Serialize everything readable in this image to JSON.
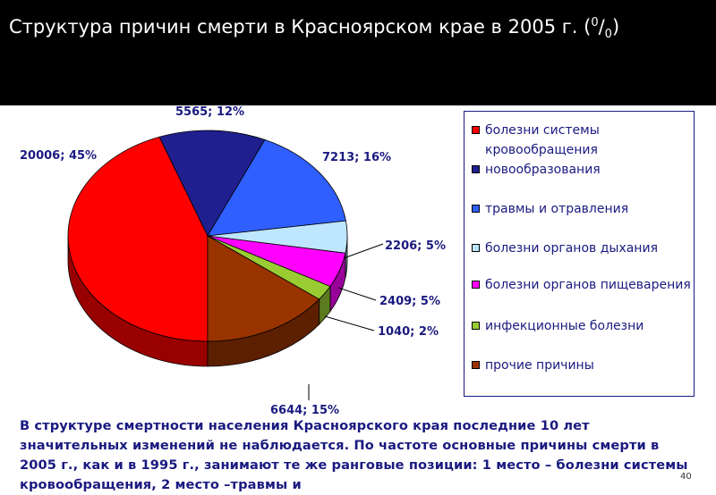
{
  "header": {
    "title_main": "Структура причин смерти в Красноярском крае в 2005 г. (",
    "title_sup": "0",
    "title_slash": "/",
    "title_sub": "0",
    "title_close": ")"
  },
  "chart_data": {
    "type": "pie",
    "title": "Структура причин смерти в Красноярском крае в 2005 г. (0/0)",
    "style": "3d-pie",
    "legend_position": "right",
    "slices": [
      {
        "name": "болезни системы кровообращения",
        "value": 20006,
        "percent": 45,
        "label": "20006; 45%",
        "color": "#ff0000"
      },
      {
        "name": "новообразования",
        "value": 5565,
        "percent": 12,
        "label": "5565; 12%",
        "color": "#1f1f8f"
      },
      {
        "name": "травмы и отравления",
        "value": 7213,
        "percent": 16,
        "label": "7213; 16%",
        "color": "#2f5fff"
      },
      {
        "name": "болезни органов дыхания",
        "value": 2206,
        "percent": 5,
        "label": "2206; 5%",
        "color": "#bfe6ff"
      },
      {
        "name": "болезни органов пищеварения",
        "value": 2409,
        "percent": 5,
        "label": "2409; 5%",
        "color": "#ff00ff"
      },
      {
        "name": "инфекционные болезни",
        "value": 1040,
        "percent": 2,
        "label": "1040; 2%",
        "color": "#99cc33"
      },
      {
        "name": "прочие причины",
        "value": 6644,
        "percent": 15,
        "label": "6644; 15%",
        "color": "#993300"
      }
    ]
  },
  "body_text": "В структуре смертности населения Красноярского края последние 10 лет значительных изменений не наблюдается. По частоте основные причины смерти в 2005 г., как и в 1995 г., занимают те же ранговые позиции: 1 место – болезни системы кровообращения, 2 место –травмы и",
  "page_number": "40"
}
